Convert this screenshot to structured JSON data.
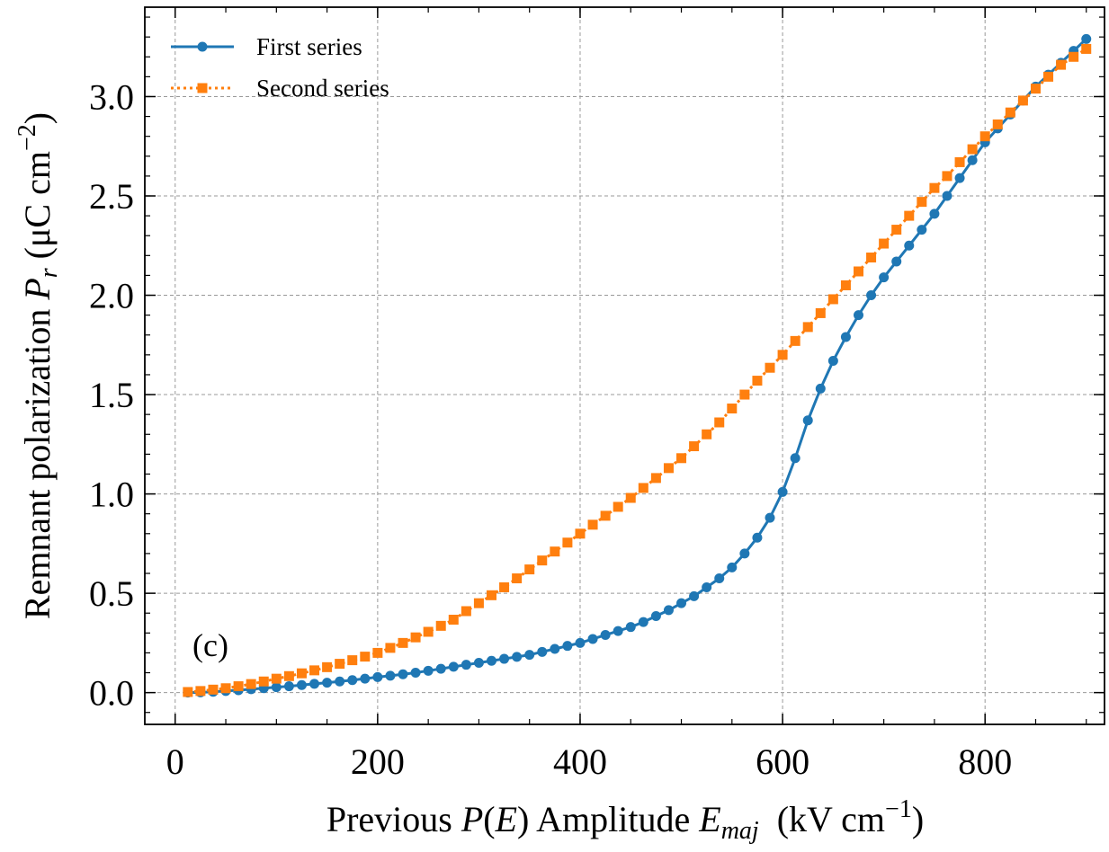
{
  "chart_data": {
    "type": "line",
    "annotation": "(c)",
    "xlabel_parts": [
      "Previous ",
      "P",
      "(",
      "E",
      ") Amplitude ",
      "E",
      "maj",
      "  (kV cm",
      "−1",
      ")"
    ],
    "ylabel_parts": [
      "Remnant polarization ",
      "P",
      "r",
      " (μC cm",
      "−2",
      ")"
    ],
    "x": [
      12.5,
      25,
      37.5,
      50,
      62.5,
      75,
      87.5,
      100,
      112.5,
      125,
      137.5,
      150,
      162.5,
      175,
      187.5,
      200,
      212.5,
      225,
      237.5,
      250,
      262.5,
      275,
      287.5,
      300,
      312.5,
      325,
      337.5,
      350,
      362.5,
      375,
      387.5,
      400,
      412.5,
      425,
      437.5,
      450,
      462.5,
      475,
      487.5,
      500,
      512.5,
      525,
      537.5,
      550,
      562.5,
      575,
      587.5,
      600,
      612.5,
      625,
      637.5,
      650,
      662.5,
      675,
      687.5,
      700,
      712.5,
      725,
      737.5,
      750,
      762.5,
      775,
      787.5,
      800,
      812.5,
      825,
      837.5,
      850,
      862.5,
      875,
      887.5,
      900
    ],
    "series": [
      {
        "name": "First series",
        "color": "#1f77b4",
        "marker": "circle",
        "linestyle": "solid",
        "values": [
          0.0,
          0.001,
          0.004,
          0.008,
          0.012,
          0.017,
          0.022,
          0.027,
          0.032,
          0.038,
          0.044,
          0.05,
          0.056,
          0.063,
          0.07,
          0.078,
          0.085,
          0.092,
          0.1,
          0.11,
          0.12,
          0.13,
          0.14,
          0.15,
          0.16,
          0.17,
          0.18,
          0.19,
          0.205,
          0.22,
          0.235,
          0.25,
          0.27,
          0.29,
          0.31,
          0.33,
          0.355,
          0.385,
          0.415,
          0.45,
          0.485,
          0.53,
          0.575,
          0.63,
          0.7,
          0.78,
          0.88,
          1.01,
          1.18,
          1.37,
          1.53,
          1.67,
          1.79,
          1.9,
          2.0,
          2.09,
          2.17,
          2.25,
          2.33,
          2.41,
          2.5,
          2.59,
          2.68,
          2.77,
          2.84,
          2.91,
          2.98,
          3.05,
          3.11,
          3.17,
          3.23,
          3.29
        ]
      },
      {
        "name": "Second series",
        "color": "#ff7f0e",
        "marker": "square",
        "linestyle": "dotted",
        "values": [
          0.003,
          0.008,
          0.015,
          0.022,
          0.032,
          0.043,
          0.056,
          0.07,
          0.083,
          0.097,
          0.112,
          0.128,
          0.145,
          0.163,
          0.181,
          0.2,
          0.225,
          0.25,
          0.278,
          0.306,
          0.336,
          0.367,
          0.41,
          0.45,
          0.49,
          0.53,
          0.575,
          0.62,
          0.665,
          0.71,
          0.755,
          0.8,
          0.845,
          0.89,
          0.935,
          0.98,
          1.03,
          1.08,
          1.13,
          1.18,
          1.24,
          1.3,
          1.36,
          1.43,
          1.5,
          1.57,
          1.635,
          1.7,
          1.77,
          1.84,
          1.91,
          1.98,
          2.05,
          2.12,
          2.19,
          2.26,
          2.33,
          2.4,
          2.47,
          2.54,
          2.6,
          2.67,
          2.735,
          2.8,
          2.86,
          2.92,
          2.98,
          3.04,
          3.1,
          3.16,
          3.2,
          3.24
        ]
      }
    ],
    "xlim": [
      -30,
      918
    ],
    "ylim": [
      -0.16,
      3.45
    ],
    "xticks": [
      0,
      200,
      400,
      600,
      800
    ],
    "yticks": [
      {
        "value": 0,
        "label": "0.0"
      },
      {
        "value": 0.5,
        "label": "0.5"
      },
      {
        "value": 1,
        "label": "1.0"
      },
      {
        "value": 1.5,
        "label": "1.5"
      },
      {
        "value": 2,
        "label": "2.0"
      },
      {
        "value": 2.5,
        "label": "2.5"
      },
      {
        "value": 3,
        "label": "3.0"
      }
    ],
    "grid": true,
    "legend": "upper left"
  }
}
